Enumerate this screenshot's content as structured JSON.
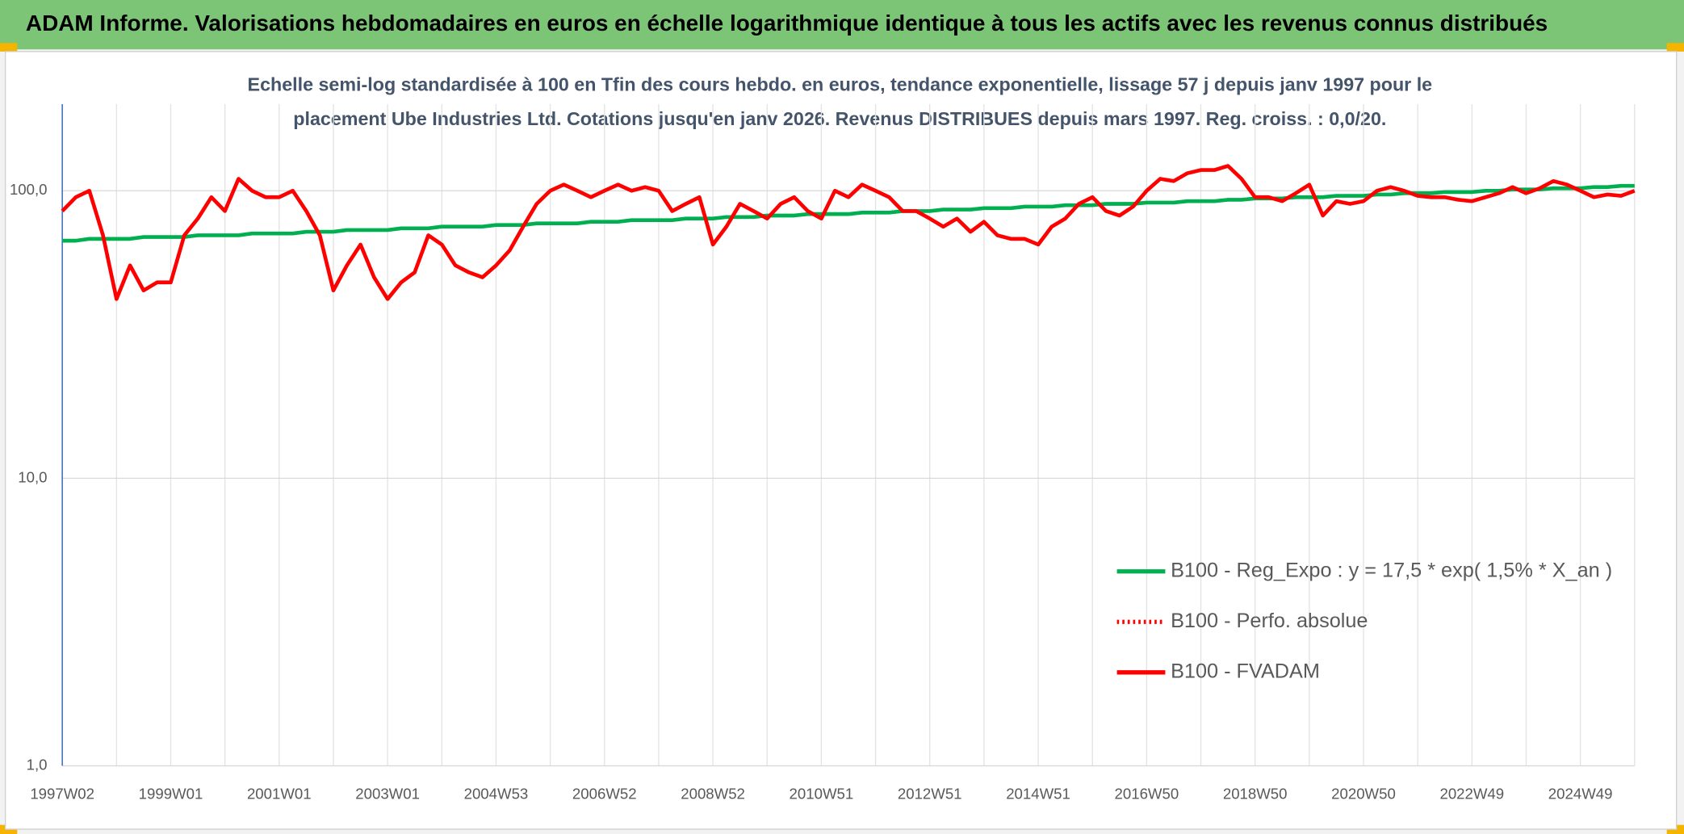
{
  "chart_data": {
    "type": "line",
    "title": "ADAM Informe. Valorisations hebdomadaires en euros en échelle logarithmique identique à tous les actifs avec les revenus connus distribués",
    "subtitle": [
      "Echelle semi-log standardisée à 100 en Tfin des cours hebdo. en euros, tendance exponentielle, lissage 57 j depuis janv 1997 pour le",
      "placement Ube Industries Ltd. Cotations jusqu'en janv 2026. Revenus DISTRIBUES depuis mars 1997. Reg. croiss. : 0,0/20."
    ],
    "log_scale": true,
    "grid": true,
    "legend": "right",
    "ylim": [
      1,
      200
    ],
    "yticks": [
      {
        "value": 1,
        "label": "1,0"
      },
      {
        "value": 10,
        "label": "10,0"
      },
      {
        "value": 100,
        "label": "100,0"
      }
    ],
    "categories": [
      "1997W02",
      null,
      null,
      null,
      null,
      null,
      null,
      null,
      "1999W01",
      null,
      null,
      null,
      null,
      null,
      null,
      null,
      "2001W01",
      null,
      null,
      null,
      null,
      null,
      null,
      null,
      "2003W01",
      null,
      null,
      null,
      null,
      null,
      null,
      null,
      "2004W53",
      null,
      null,
      null,
      null,
      null,
      null,
      null,
      "2006W52",
      null,
      null,
      null,
      null,
      null,
      null,
      null,
      "2008W52",
      null,
      null,
      null,
      null,
      null,
      null,
      null,
      "2010W51",
      null,
      null,
      null,
      null,
      null,
      null,
      null,
      "2012W51",
      null,
      null,
      null,
      null,
      null,
      null,
      null,
      "2014W51",
      null,
      null,
      null,
      null,
      null,
      null,
      null,
      "2016W50",
      null,
      null,
      null,
      null,
      null,
      null,
      null,
      "2018W50",
      null,
      null,
      null,
      null,
      null,
      null,
      null,
      "2020W50",
      null,
      null,
      null,
      null,
      null,
      null,
      null,
      "2022W49",
      null,
      null,
      null,
      null,
      null,
      null,
      null,
      "2024W49",
      null,
      null,
      null,
      null
    ],
    "series": [
      {
        "name": "B100 - Reg_Expo : y = 17,5 * exp( 1,5% *  X_an )",
        "color": "#00b050",
        "style": "solid",
        "values": [
          67,
          67,
          68,
          68,
          68,
          68,
          69,
          69,
          69,
          69,
          70,
          70,
          70,
          70,
          71,
          71,
          71,
          71,
          72,
          72,
          72,
          73,
          73,
          73,
          73,
          74,
          74,
          74,
          75,
          75,
          75,
          75,
          76,
          76,
          76,
          77,
          77,
          77,
          77,
          78,
          78,
          78,
          79,
          79,
          79,
          79,
          80,
          80,
          80,
          81,
          81,
          81,
          82,
          82,
          82,
          83,
          83,
          83,
          83,
          84,
          84,
          84,
          85,
          85,
          85,
          86,
          86,
          86,
          87,
          87,
          87,
          88,
          88,
          88,
          89,
          89,
          89,
          90,
          90,
          90,
          91,
          91,
          91,
          92,
          92,
          92,
          93,
          93,
          94,
          94,
          94,
          95,
          95,
          95,
          96,
          96,
          96,
          97,
          97,
          98,
          98,
          98,
          99,
          99,
          99,
          100,
          100,
          101,
          101,
          101,
          102,
          102,
          102,
          103,
          103,
          104,
          104
        ]
      },
      {
        "name": "B100 - Perfo. absolue",
        "color": "#ff0000",
        "style": "dotted",
        "values": [
          null,
          null,
          null,
          null,
          null,
          null,
          null,
          null,
          null,
          null,
          null,
          null,
          null,
          null,
          null,
          null,
          null,
          null,
          null,
          null,
          null,
          null,
          null,
          null,
          null,
          null,
          null,
          null,
          null,
          null,
          null,
          null,
          null,
          null,
          null,
          null,
          null,
          null,
          null,
          null,
          null,
          null,
          null,
          null,
          null,
          null,
          null,
          null,
          null,
          null,
          null,
          null,
          null,
          null,
          null,
          null,
          null,
          null,
          null,
          null,
          null,
          null,
          null,
          null,
          null,
          null,
          null,
          null,
          null,
          null,
          null,
          null,
          null,
          null,
          null,
          null,
          null,
          null,
          null,
          null,
          null,
          null,
          null,
          null,
          null,
          null,
          null,
          null,
          null,
          null,
          null,
          null,
          null,
          null,
          null,
          null,
          null,
          null,
          null,
          null,
          null,
          null,
          null,
          null,
          null,
          null,
          null,
          null,
          null,
          null,
          null,
          null,
          null,
          null,
          null,
          null,
          null
        ]
      },
      {
        "name": "B100 - FVADAM",
        "color": "#ff0000",
        "style": "solid",
        "values": [
          85,
          95,
          100,
          70,
          42,
          55,
          45,
          48,
          48,
          70,
          80,
          95,
          85,
          110,
          100,
          95,
          95,
          100,
          85,
          70,
          45,
          55,
          65,
          50,
          42,
          48,
          52,
          70,
          65,
          55,
          52,
          50,
          55,
          62,
          75,
          90,
          100,
          105,
          100,
          95,
          100,
          105,
          100,
          103,
          100,
          85,
          90,
          95,
          65,
          75,
          90,
          85,
          80,
          90,
          95,
          85,
          80,
          100,
          95,
          105,
          100,
          95,
          85,
          85,
          80,
          75,
          80,
          72,
          78,
          70,
          68,
          68,
          65,
          75,
          80,
          90,
          95,
          85,
          82,
          88,
          100,
          110,
          108,
          115,
          118,
          118,
          122,
          110,
          95,
          95,
          92,
          98,
          105,
          82,
          92,
          90,
          92,
          100,
          103,
          100,
          96,
          95,
          95,
          93,
          92,
          95,
          98,
          103,
          98,
          102,
          108,
          105,
          100,
          95,
          97,
          96,
          100
        ]
      }
    ]
  }
}
